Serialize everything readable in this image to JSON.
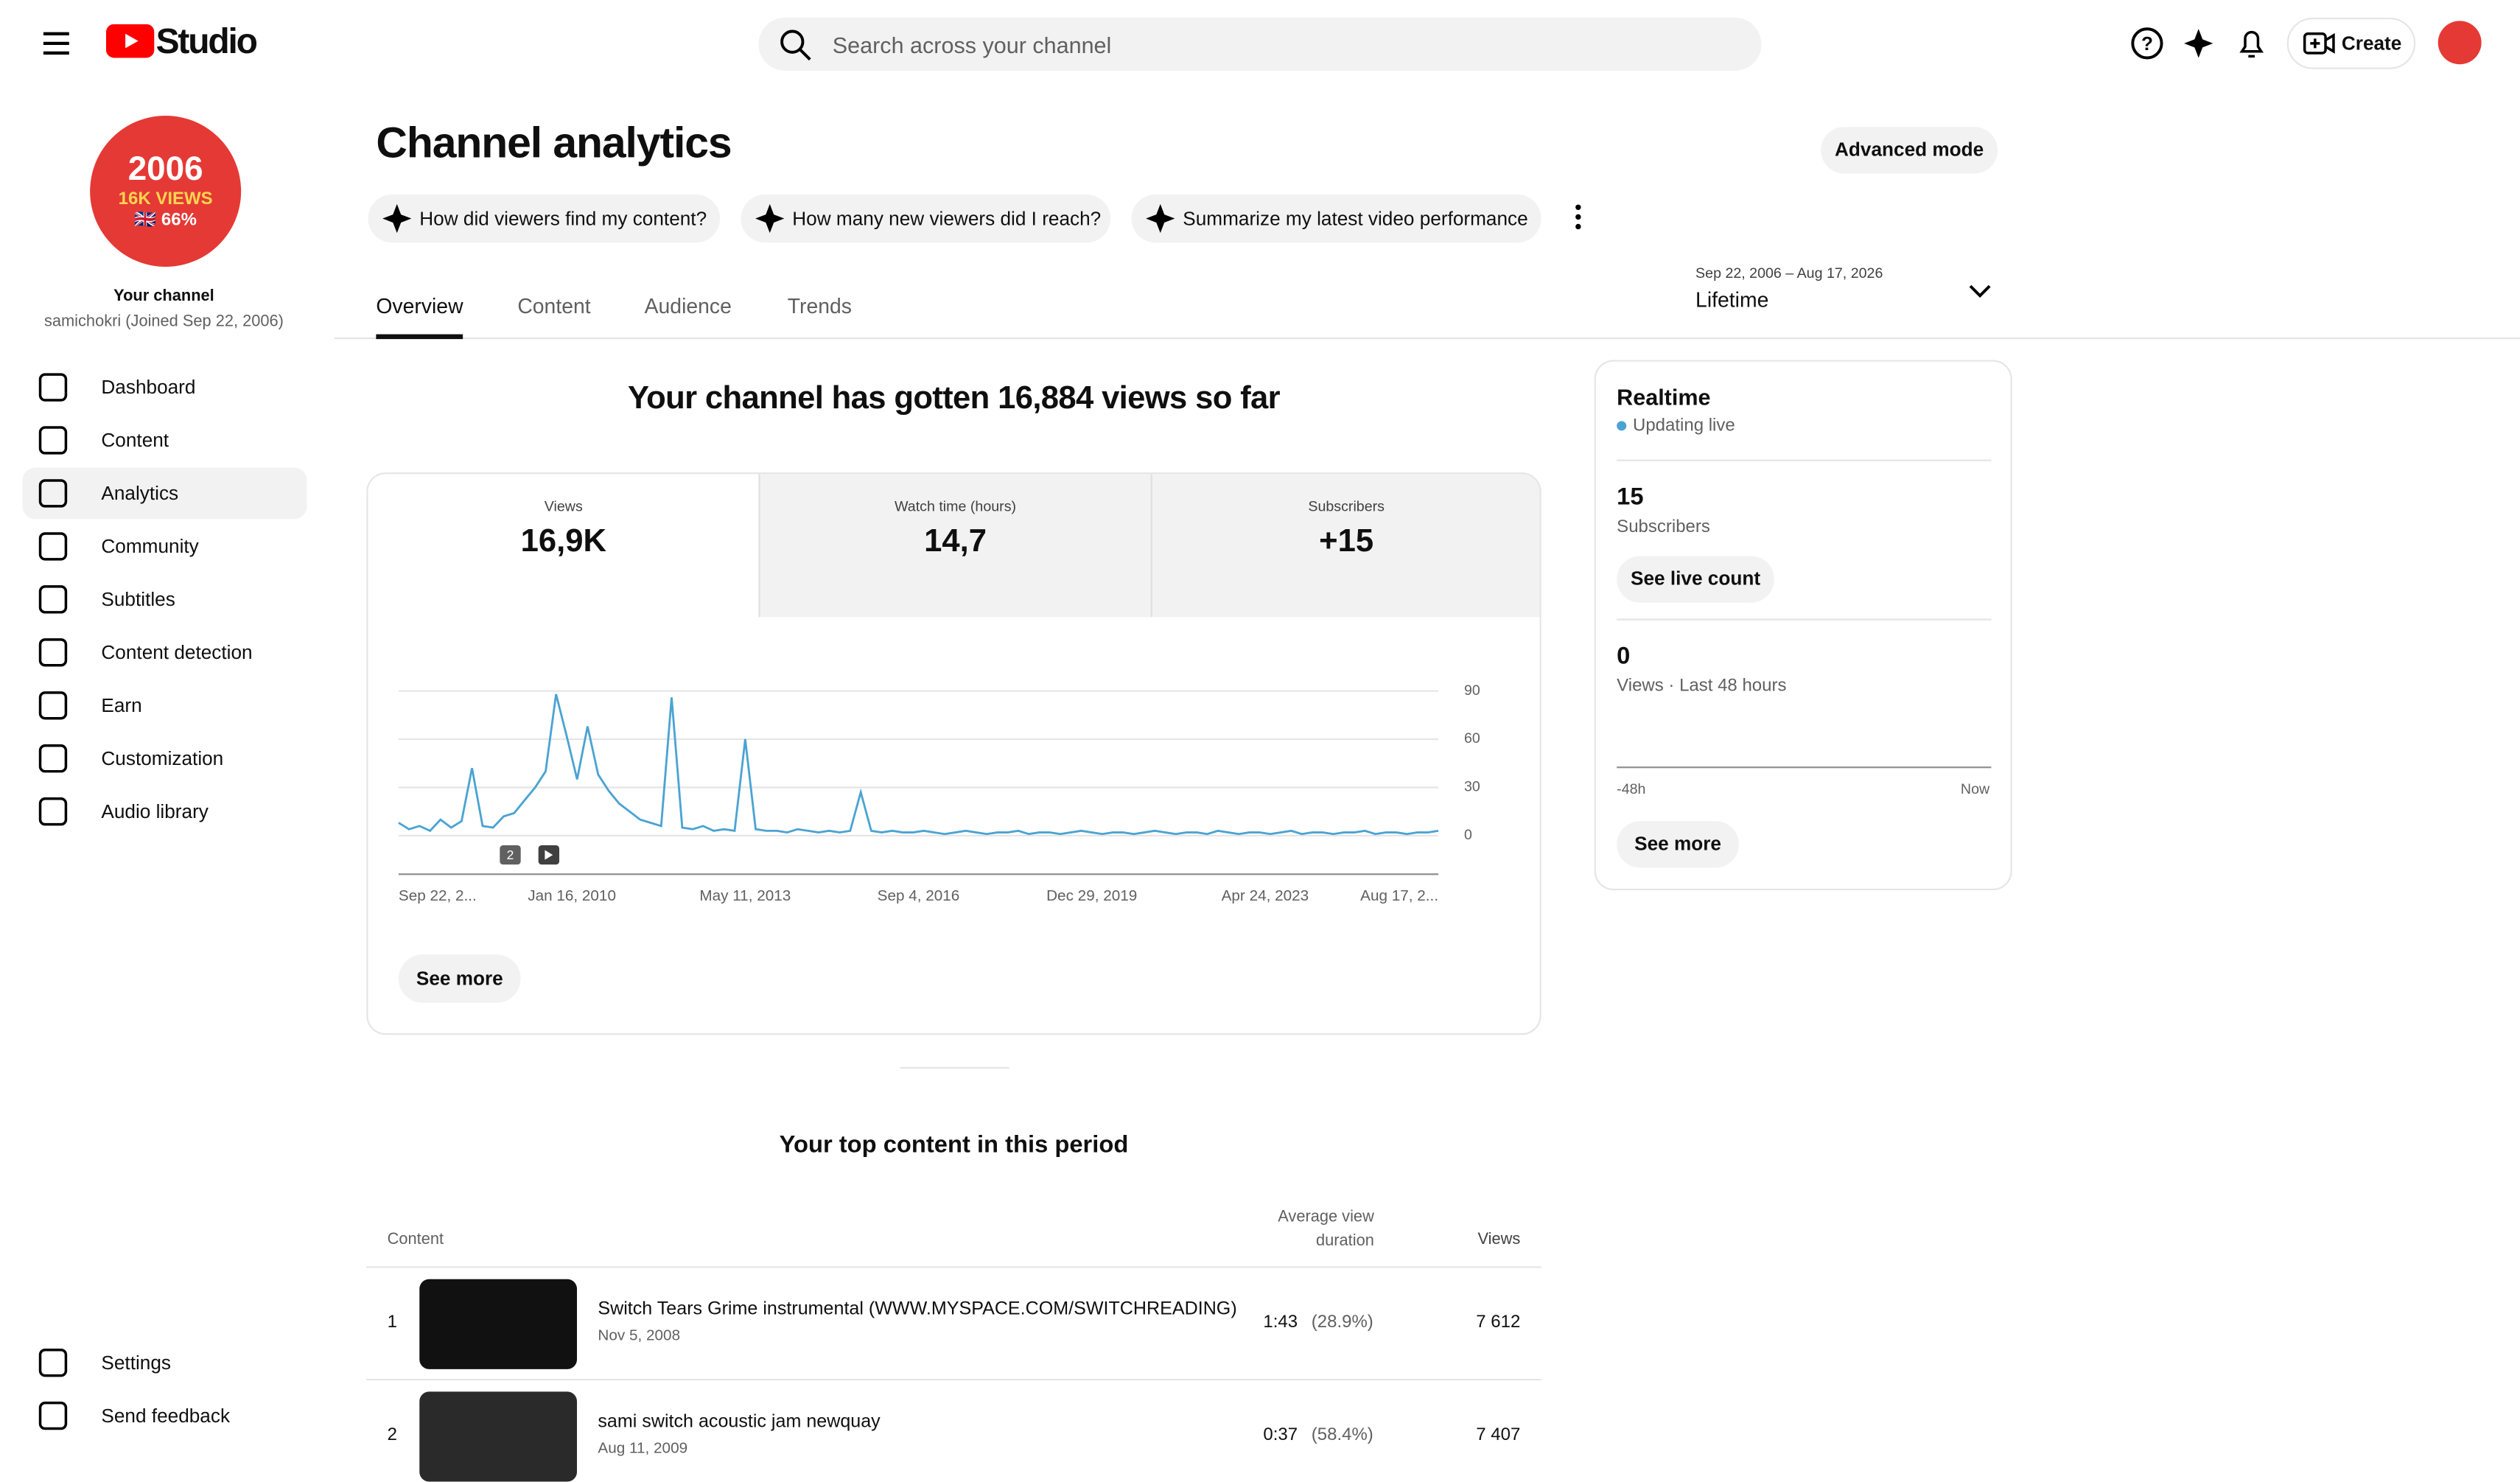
{
  "header": {
    "logo": "Studio",
    "search_placeholder": "Search across your channel",
    "create": "Create"
  },
  "sidebar": {
    "avatar": {
      "year": "2006",
      "views": "16K VIEWS",
      "pct": "🇬🇧 66%"
    },
    "channel_label": "Your channel",
    "channel_handle": "samichokri (Joined Sep 22, 2006)",
    "nav": [
      "Dashboard",
      "Content",
      "Analytics",
      "Community",
      "Subtitles",
      "Content detection",
      "Earn",
      "Customization",
      "Audio library"
    ],
    "active": "Analytics",
    "bottom_nav": [
      "Settings",
      "Send feedback"
    ]
  },
  "page": {
    "title": "Channel analytics",
    "advanced": "Advanced mode",
    "prompts": [
      "How did viewers find my content?",
      "How many new viewers did I reach?",
      "Summarize my latest video performance"
    ],
    "tabs": [
      "Overview",
      "Content",
      "Audience",
      "Trends"
    ],
    "date_range": {
      "range": "Sep 22, 2006 – Aug 17, 2026",
      "label": "Lifetime"
    }
  },
  "summary": "Your channel has gotten 16,884 views so far",
  "metrics": [
    {
      "label": "Views",
      "value": "16,9K"
    },
    {
      "label": "Watch time (hours)",
      "value": "14,7"
    },
    {
      "label": "Subscribers",
      "value": "+15"
    }
  ],
  "chart_data": {
    "type": "line",
    "color": "#4ba3d3",
    "values": [
      8,
      4,
      6,
      3,
      10,
      5,
      9,
      42,
      6,
      5,
      12,
      14,
      22,
      30,
      40,
      88,
      62,
      35,
      68,
      38,
      28,
      20,
      15,
      10,
      8,
      6,
      86,
      5,
      4,
      6,
      3,
      4,
      3,
      60,
      4,
      3,
      3,
      2,
      4,
      3,
      2,
      3,
      2,
      3,
      27,
      3,
      2,
      3,
      2,
      2,
      3,
      2,
      1,
      2,
      3,
      2,
      1,
      2,
      2,
      3,
      1,
      2,
      2,
      1,
      2,
      3,
      2,
      1,
      2,
      2,
      1,
      2,
      3,
      2,
      1,
      2,
      2,
      1,
      3,
      2,
      1,
      2,
      2,
      1,
      2,
      3,
      1,
      2,
      2,
      1,
      2,
      2,
      3,
      1,
      2,
      2,
      1,
      2,
      2,
      3
    ],
    "ylim": [
      0,
      90
    ],
    "yticks": [
      0,
      30,
      60,
      90
    ],
    "x_labels": [
      "Sep 22, 2...",
      "Jan 16, 2010",
      "May 11, 2013",
      "Sep 4, 2016",
      "Dec 29, 2019",
      "Apr 24, 2023",
      "Aug 17, 2..."
    ],
    "markers": [
      "2"
    ],
    "grid": true
  },
  "see_more": "See more",
  "realtime": {
    "title": "Realtime",
    "status": "Updating live",
    "subs_value": "15",
    "subs_label": "Subscribers",
    "live_button": "See live count",
    "views_value": "0",
    "views_label": "Views · Last 48 hours",
    "axis_start": "-48h",
    "axis_end": "Now",
    "see_more": "See more"
  },
  "top_content": {
    "title": "Your top content in this period",
    "headers": [
      "Content",
      "Average view duration",
      "Views"
    ],
    "rows": [
      [
        "1",
        "Switch Tears Grime instrumental (WWW.MYSPACE.COM/SWITCHREADING)",
        "Nov 5, 2008",
        "1:43",
        "(28.9%)",
        "7 612"
      ],
      [
        "2",
        "sami switch acoustic jam newquay",
        "Aug 11, 2009",
        "0:37",
        "(58.4%)",
        "7 407"
      ]
    ]
  }
}
